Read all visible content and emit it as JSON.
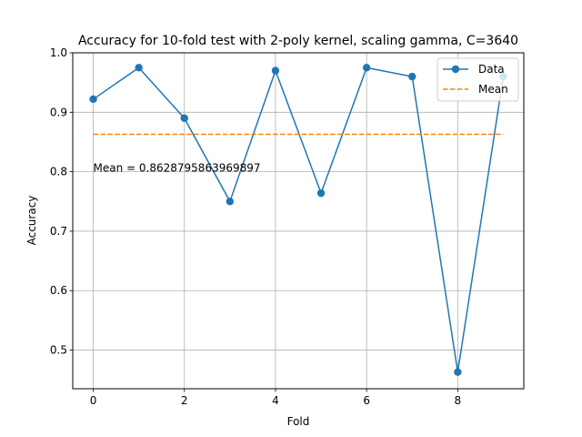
{
  "chart_data": {
    "type": "line",
    "title": "Accuracy for 10-fold test with 2-poly kernel, scaling gamma, C=3640",
    "xlabel": "Fold",
    "ylabel": "Accuracy",
    "xlim": [
      -0.45,
      9.45
    ],
    "ylim": [
      0.435,
      1.0
    ],
    "xticks": [
      0,
      2,
      4,
      6,
      8
    ],
    "yticks": [
      0.5,
      0.6,
      0.7,
      0.8,
      0.9,
      1.0
    ],
    "xtick_labels": [
      "0",
      "2",
      "4",
      "6",
      "8"
    ],
    "ytick_labels": [
      "0.5",
      "0.6",
      "0.7",
      "0.8",
      "0.9",
      "1.0"
    ],
    "grid": true,
    "legend_position": "top-right",
    "series": [
      {
        "name": "Data",
        "color": "#1f77b4",
        "style": "solid-with-markers",
        "x": [
          0,
          1,
          2,
          3,
          4,
          5,
          6,
          7,
          8,
          9
        ],
        "values": [
          0.922,
          0.975,
          0.89,
          0.75,
          0.97,
          0.764,
          0.975,
          0.96,
          0.463,
          0.96
        ]
      },
      {
        "name": "Mean",
        "color": "#ff7f0e",
        "style": "dashed",
        "x": [
          0,
          9
        ],
        "values": [
          0.8628795863969897,
          0.8628795863969897
        ]
      }
    ],
    "annotations": [
      {
        "text": "Mean = 0.8628795863969897",
        "x": 0,
        "y": 0.8
      }
    ]
  }
}
